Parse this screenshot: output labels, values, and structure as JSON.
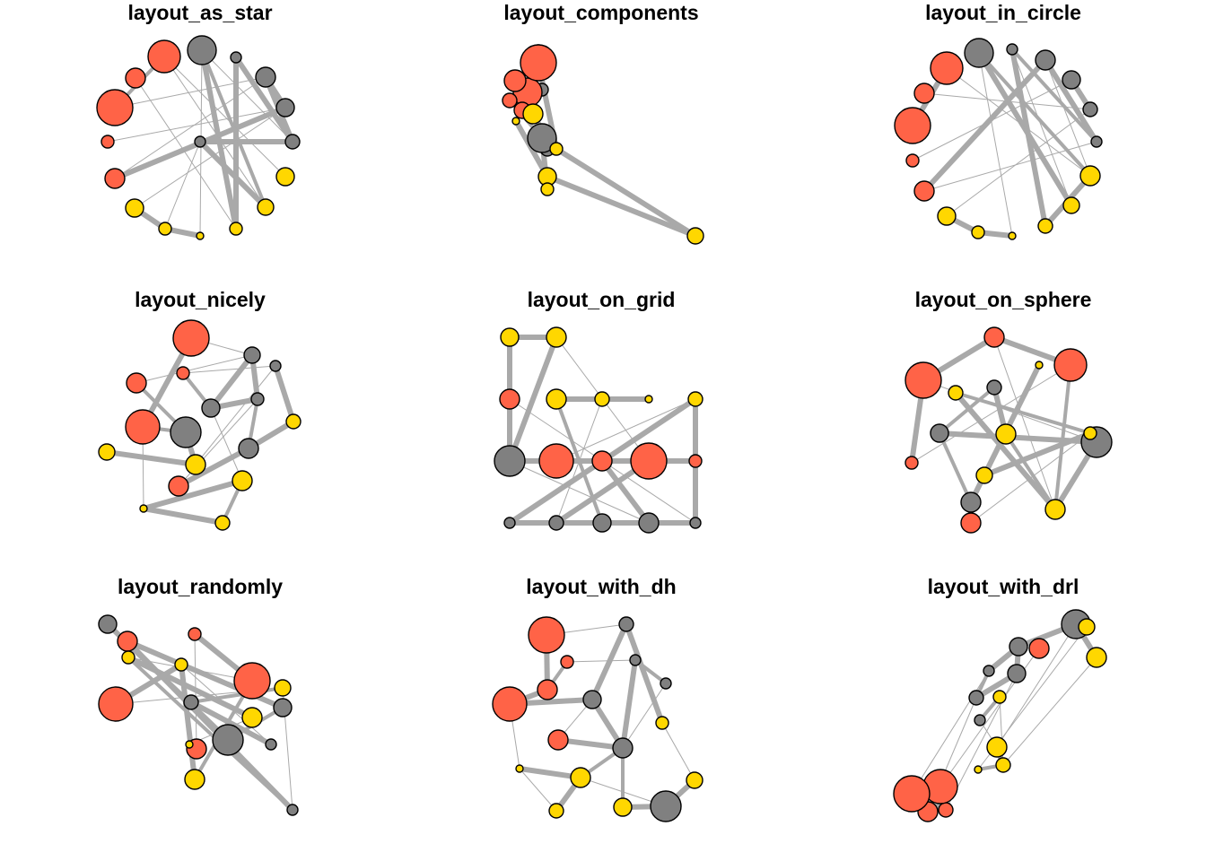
{
  "colors": {
    "red": "#ff6347",
    "gray": "#808080",
    "gold": "#ffd700",
    "edge": "#a9a9a9",
    "node_border": "#000000",
    "background": "#ffffff"
  },
  "panels": [
    {
      "title": "layout_as_star"
    },
    {
      "title": "layout_components"
    },
    {
      "title": "layout_in_circle"
    },
    {
      "title": "layout_nicely"
    },
    {
      "title": "layout_on_grid"
    },
    {
      "title": "layout_on_sphere"
    },
    {
      "title": "layout_randomly"
    },
    {
      "title": "layout_with_dh"
    },
    {
      "title": "layout_with_drl"
    }
  ]
}
